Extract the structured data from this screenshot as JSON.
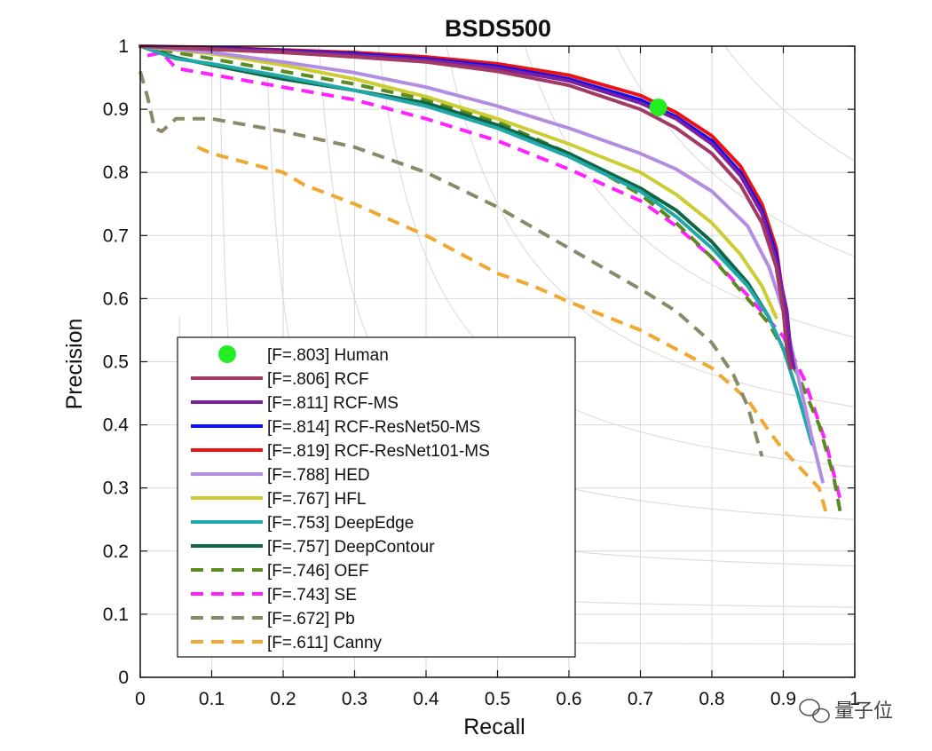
{
  "chart_data": {
    "type": "line",
    "title": "BSDS500",
    "xlabel": "Recall",
    "ylabel": "Precision",
    "xlim": [
      0,
      1
    ],
    "ylim": [
      0,
      1
    ],
    "xticks": [
      0,
      0.1,
      0.2,
      0.3,
      0.4,
      0.5,
      0.6,
      0.7,
      0.8,
      0.9,
      1
    ],
    "xtick_labels": [
      "0",
      "0.1",
      "0.2",
      "0.3",
      "0.4",
      "0.5",
      "0.6",
      "0.7",
      "0.8",
      "0.9",
      "1"
    ],
    "yticks": [
      0,
      0.1,
      0.2,
      0.3,
      0.4,
      0.5,
      0.6,
      0.7,
      0.8,
      0.9,
      1
    ],
    "ytick_labels": [
      "0",
      "0.1",
      "0.2",
      "0.3",
      "0.4",
      "0.5",
      "0.6",
      "0.7",
      "0.8",
      "0.9",
      "1"
    ],
    "grid": true,
    "iso_f_curves": [
      0.1,
      0.2,
      0.3,
      0.4,
      0.5,
      0.6,
      0.7,
      0.8,
      0.9
    ],
    "legend_position": "lower-left",
    "series": [
      {
        "name": "[F=.803] Human",
        "style": "marker",
        "color": "#22ee22",
        "points": [
          [
            0.725,
            0.903
          ]
        ]
      },
      {
        "name": "[F=.806] RCF",
        "style": "solid",
        "color": "#a33a65",
        "points": [
          [
            0,
            1
          ],
          [
            0.1,
            0.995
          ],
          [
            0.2,
            0.99
          ],
          [
            0.3,
            0.983
          ],
          [
            0.4,
            0.975
          ],
          [
            0.5,
            0.96
          ],
          [
            0.6,
            0.938
          ],
          [
            0.7,
            0.9
          ],
          [
            0.75,
            0.87
          ],
          [
            0.8,
            0.83
          ],
          [
            0.84,
            0.78
          ],
          [
            0.87,
            0.72
          ],
          [
            0.89,
            0.65
          ],
          [
            0.9,
            0.58
          ],
          [
            0.905,
            0.52
          ],
          [
            0.91,
            0.49
          ]
        ]
      },
      {
        "name": "[F=.811] RCF-MS",
        "style": "solid",
        "color": "#7b1fa2",
        "points": [
          [
            0,
            1
          ],
          [
            0.1,
            0.996
          ],
          [
            0.2,
            0.992
          ],
          [
            0.3,
            0.986
          ],
          [
            0.4,
            0.978
          ],
          [
            0.5,
            0.965
          ],
          [
            0.6,
            0.945
          ],
          [
            0.7,
            0.91
          ],
          [
            0.75,
            0.885
          ],
          [
            0.8,
            0.845
          ],
          [
            0.84,
            0.795
          ],
          [
            0.87,
            0.735
          ],
          [
            0.89,
            0.66
          ],
          [
            0.905,
            0.58
          ],
          [
            0.91,
            0.52
          ],
          [
            0.915,
            0.49
          ]
        ]
      },
      {
        "name": "[F=.814] RCF-ResNet50-MS",
        "style": "solid",
        "color": "#1010ee",
        "points": [
          [
            0,
            1
          ],
          [
            0.1,
            0.997
          ],
          [
            0.2,
            0.993
          ],
          [
            0.3,
            0.988
          ],
          [
            0.4,
            0.98
          ],
          [
            0.5,
            0.968
          ],
          [
            0.6,
            0.948
          ],
          [
            0.7,
            0.915
          ],
          [
            0.75,
            0.888
          ],
          [
            0.8,
            0.85
          ],
          [
            0.84,
            0.8
          ],
          [
            0.87,
            0.74
          ],
          [
            0.89,
            0.67
          ],
          [
            0.9,
            0.6
          ],
          [
            0.908,
            0.52
          ],
          [
            0.912,
            0.5
          ]
        ]
      },
      {
        "name": "[F=.819] RCF-ResNet101-MS",
        "style": "solid",
        "color": "#ee1111",
        "points": [
          [
            0,
            1
          ],
          [
            0.1,
            0.998
          ],
          [
            0.2,
            0.994
          ],
          [
            0.3,
            0.99
          ],
          [
            0.4,
            0.983
          ],
          [
            0.5,
            0.972
          ],
          [
            0.6,
            0.954
          ],
          [
            0.7,
            0.922
          ],
          [
            0.75,
            0.895
          ],
          [
            0.8,
            0.858
          ],
          [
            0.84,
            0.81
          ],
          [
            0.87,
            0.75
          ],
          [
            0.89,
            0.68
          ],
          [
            0.9,
            0.6
          ],
          [
            0.908,
            0.53
          ],
          [
            0.912,
            0.51
          ]
        ]
      },
      {
        "name": "[F=.788] HED",
        "style": "solid",
        "color": "#b38ee0",
        "points": [
          [
            0,
            1
          ],
          [
            0.1,
            0.99
          ],
          [
            0.2,
            0.975
          ],
          [
            0.3,
            0.958
          ],
          [
            0.4,
            0.935
          ],
          [
            0.5,
            0.905
          ],
          [
            0.6,
            0.87
          ],
          [
            0.7,
            0.83
          ],
          [
            0.75,
            0.805
          ],
          [
            0.8,
            0.77
          ],
          [
            0.85,
            0.715
          ],
          [
            0.88,
            0.65
          ],
          [
            0.9,
            0.58
          ],
          [
            0.92,
            0.48
          ],
          [
            0.94,
            0.38
          ],
          [
            0.955,
            0.31
          ]
        ]
      },
      {
        "name": "[F=.767] HFL",
        "style": "solid",
        "color": "#cccc33",
        "points": [
          [
            0,
            1
          ],
          [
            0.1,
            0.988
          ],
          [
            0.2,
            0.97
          ],
          [
            0.3,
            0.948
          ],
          [
            0.4,
            0.92
          ],
          [
            0.5,
            0.885
          ],
          [
            0.6,
            0.845
          ],
          [
            0.7,
            0.8
          ],
          [
            0.75,
            0.765
          ],
          [
            0.8,
            0.72
          ],
          [
            0.84,
            0.67
          ],
          [
            0.87,
            0.62
          ],
          [
            0.89,
            0.57
          ]
        ]
      },
      {
        "name": "[F=.753] DeepEdge",
        "style": "solid",
        "color": "#22a8a8",
        "points": [
          [
            0,
            1
          ],
          [
            0.05,
            0.98
          ],
          [
            0.1,
            0.972
          ],
          [
            0.2,
            0.952
          ],
          [
            0.3,
            0.93
          ],
          [
            0.4,
            0.905
          ],
          [
            0.5,
            0.87
          ],
          [
            0.6,
            0.825
          ],
          [
            0.7,
            0.77
          ],
          [
            0.75,
            0.73
          ],
          [
            0.8,
            0.68
          ],
          [
            0.85,
            0.62
          ],
          [
            0.88,
            0.57
          ],
          [
            0.9,
            0.52
          ],
          [
            0.92,
            0.45
          ],
          [
            0.94,
            0.37
          ]
        ]
      },
      {
        "name": "[F=.757] DeepContour",
        "style": "solid",
        "color": "#0f6645",
        "points": [
          [
            0,
            1
          ],
          [
            0.05,
            0.982
          ],
          [
            0.1,
            0.97
          ],
          [
            0.2,
            0.948
          ],
          [
            0.3,
            0.93
          ],
          [
            0.4,
            0.91
          ],
          [
            0.5,
            0.875
          ],
          [
            0.6,
            0.83
          ],
          [
            0.7,
            0.775
          ],
          [
            0.75,
            0.74
          ],
          [
            0.8,
            0.69
          ],
          [
            0.85,
            0.625
          ],
          [
            0.88,
            0.57
          ]
        ]
      },
      {
        "name": "[F=.746] OEF",
        "style": "dashed",
        "color": "#5a8a20",
        "points": [
          [
            0,
            1
          ],
          [
            0.1,
            0.98
          ],
          [
            0.2,
            0.96
          ],
          [
            0.3,
            0.94
          ],
          [
            0.4,
            0.915
          ],
          [
            0.5,
            0.88
          ],
          [
            0.6,
            0.83
          ],
          [
            0.7,
            0.765
          ],
          [
            0.75,
            0.72
          ],
          [
            0.8,
            0.665
          ],
          [
            0.85,
            0.6
          ],
          [
            0.88,
            0.56
          ],
          [
            0.92,
            0.48
          ],
          [
            0.95,
            0.4
          ],
          [
            0.97,
            0.32
          ],
          [
            0.98,
            0.26
          ]
        ]
      },
      {
        "name": "[F=.743] SE",
        "style": "dashed",
        "color": "#ff22ff",
        "points": [
          [
            0.01,
            0.985
          ],
          [
            0.03,
            0.99
          ],
          [
            0.05,
            0.965
          ],
          [
            0.1,
            0.955
          ],
          [
            0.2,
            0.935
          ],
          [
            0.3,
            0.915
          ],
          [
            0.4,
            0.885
          ],
          [
            0.5,
            0.85
          ],
          [
            0.6,
            0.805
          ],
          [
            0.7,
            0.755
          ],
          [
            0.75,
            0.715
          ],
          [
            0.8,
            0.665
          ],
          [
            0.85,
            0.605
          ],
          [
            0.9,
            0.54
          ],
          [
            0.93,
            0.47
          ],
          [
            0.96,
            0.37
          ],
          [
            0.98,
            0.28
          ]
        ]
      },
      {
        "name": "[F=.672] Pb",
        "style": "dashed",
        "color": "#8a8a6a",
        "points": [
          [
            0,
            0.96
          ],
          [
            0.01,
            0.92
          ],
          [
            0.02,
            0.87
          ],
          [
            0.03,
            0.865
          ],
          [
            0.05,
            0.885
          ],
          [
            0.1,
            0.885
          ],
          [
            0.2,
            0.865
          ],
          [
            0.3,
            0.84
          ],
          [
            0.4,
            0.8
          ],
          [
            0.5,
            0.745
          ],
          [
            0.6,
            0.68
          ],
          [
            0.7,
            0.615
          ],
          [
            0.75,
            0.58
          ],
          [
            0.8,
            0.53
          ],
          [
            0.83,
            0.48
          ],
          [
            0.85,
            0.43
          ],
          [
            0.87,
            0.35
          ]
        ]
      },
      {
        "name": "[F=.611] Canny",
        "style": "dashed",
        "color": "#f0a830",
        "points": [
          [
            0.08,
            0.84
          ],
          [
            0.1,
            0.83
          ],
          [
            0.2,
            0.8
          ],
          [
            0.23,
            0.78
          ],
          [
            0.3,
            0.75
          ],
          [
            0.4,
            0.7
          ],
          [
            0.5,
            0.64
          ],
          [
            0.55,
            0.62
          ],
          [
            0.6,
            0.595
          ],
          [
            0.7,
            0.55
          ],
          [
            0.75,
            0.52
          ],
          [
            0.8,
            0.49
          ],
          [
            0.85,
            0.44
          ],
          [
            0.88,
            0.39
          ],
          [
            0.9,
            0.36
          ],
          [
            0.95,
            0.3
          ],
          [
            0.96,
            0.26
          ]
        ]
      }
    ]
  },
  "watermark": {
    "text": "量子位"
  }
}
